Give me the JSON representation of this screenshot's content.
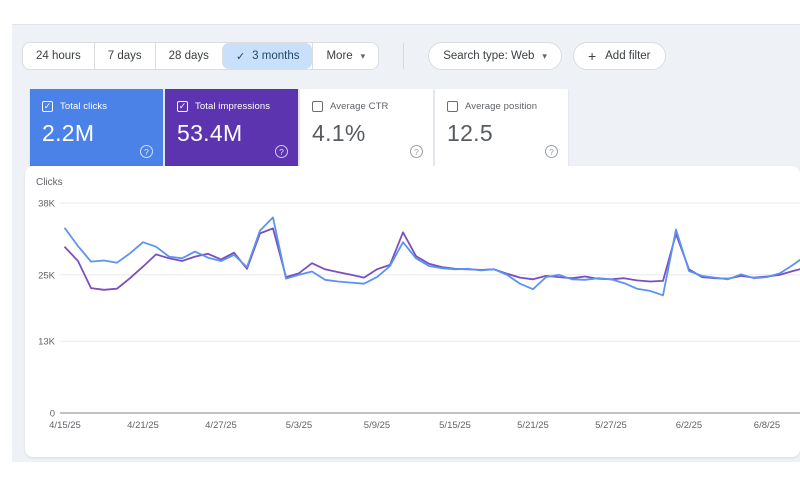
{
  "page": {
    "background": "#ffffff",
    "panel_background": "#eef1f5"
  },
  "toolbar": {
    "selected_chip_bg": "#c9e0fa",
    "date_ranges": [
      {
        "label": "24 hours",
        "selected": false
      },
      {
        "label": "7 days",
        "selected": false
      },
      {
        "label": "28 days",
        "selected": false
      },
      {
        "label": "3 months",
        "selected": true,
        "check_icon": "✓"
      },
      {
        "label": "More",
        "selected": false,
        "has_caret": true
      }
    ],
    "caret_icon": "▾",
    "search_type_label": "Search type: Web",
    "add_filter_plus": "+",
    "add_filter_label": "Add filter"
  },
  "metrics": [
    {
      "label": "Total clicks",
      "value": "2.2M",
      "checked": true,
      "bg": "#4a82e8",
      "text_color": "#ffffff",
      "help_icon": "?"
    },
    {
      "label": "Total impressions",
      "value": "53.4M",
      "checked": true,
      "bg": "#5c34b0",
      "text_color": "#ffffff",
      "help_icon": "?"
    },
    {
      "label": "Average CTR",
      "value": "4.1%",
      "checked": false,
      "bg": "#ffffff",
      "text_color": "#585c60",
      "help_icon": "?"
    },
    {
      "label": "Average position",
      "value": "12.5",
      "checked": false,
      "bg": "#ffffff",
      "text_color": "#585c60",
      "help_icon": "?"
    }
  ],
  "chart_data": {
    "type": "line",
    "ylabel": "Clicks",
    "grid": true,
    "legend": "none",
    "ylim": [
      0,
      39500
    ],
    "y_ticks": [
      {
        "label": "38K",
        "value": 38000
      },
      {
        "label": "25K",
        "value": 25000
      },
      {
        "label": "13K",
        "value": 13000
      },
      {
        "label": "0",
        "value": 0
      }
    ],
    "x_tick_labels": [
      "4/15/25",
      "4/21/25",
      "4/27/25",
      "5/3/25",
      "5/9/25",
      "5/15/25",
      "5/21/25",
      "5/27/25",
      "6/2/25",
      "6/8/25"
    ],
    "x_tick_indices": [
      0,
      6,
      12,
      18,
      24,
      30,
      36,
      42,
      48,
      54
    ],
    "dates": [
      "4/15/25",
      "4/16/25",
      "4/17/25",
      "4/18/25",
      "4/19/25",
      "4/20/25",
      "4/21/25",
      "4/22/25",
      "4/23/25",
      "4/24/25",
      "4/25/25",
      "4/26/25",
      "4/27/25",
      "4/28/25",
      "4/29/25",
      "4/30/25",
      "5/1/25",
      "5/2/25",
      "5/3/25",
      "5/4/25",
      "5/5/25",
      "5/6/25",
      "5/7/25",
      "5/8/25",
      "5/9/25",
      "5/10/25",
      "5/11/25",
      "5/12/25",
      "5/13/25",
      "5/14/25",
      "5/15/25",
      "5/16/25",
      "5/17/25",
      "5/18/25",
      "5/19/25",
      "5/20/25",
      "5/21/25",
      "5/22/25",
      "5/23/25",
      "5/24/25",
      "5/25/25",
      "5/26/25",
      "5/27/25",
      "5/28/25",
      "5/29/25",
      "5/30/25",
      "5/31/25",
      "6/1/25",
      "6/2/25",
      "6/3/25",
      "6/4/25",
      "6/5/25",
      "6/6/25",
      "6/7/25",
      "6/8/25",
      "6/9/25",
      "6/10/25",
      "6/11/25"
    ],
    "note": "Impressions line is drawn against a secondary axis not visible in the crop; values below are as plotted on the visible Clicks axis.",
    "series": [
      {
        "name": "Total impressions",
        "color": "#7a4fc0",
        "values": [
          30000,
          27500,
          22600,
          22300,
          22500,
          24400,
          26500,
          28700,
          28000,
          27500,
          28300,
          28800,
          27800,
          29000,
          26100,
          32500,
          33400,
          24600,
          25300,
          27100,
          26000,
          25500,
          25000,
          24500,
          26000,
          26800,
          32700,
          28400,
          27000,
          26400,
          26100,
          26000,
          25900,
          26000,
          25200,
          24500,
          24200,
          24800,
          24600,
          24400,
          24700,
          24300,
          24200,
          24400,
          24000,
          23800,
          23900,
          32400,
          26000,
          24600,
          24400,
          24300,
          24800,
          24500,
          24700,
          25000,
          25700,
          26300
        ]
      },
      {
        "name": "Total clicks",
        "color": "#5b93f2",
        "values": [
          33400,
          30200,
          27400,
          27600,
          27200,
          28900,
          30900,
          30100,
          28300,
          28000,
          29200,
          28100,
          27500,
          28600,
          26400,
          33000,
          35400,
          24300,
          25000,
          25600,
          24100,
          23800,
          23600,
          23400,
          24600,
          26600,
          30900,
          28000,
          26600,
          26200,
          26000,
          26100,
          25800,
          26000,
          25000,
          23400,
          22400,
          24600,
          25000,
          24200,
          24100,
          24400,
          24200,
          23500,
          22500,
          22100,
          21300,
          33200,
          25700,
          24800,
          24500,
          24200,
          25100,
          24400,
          24600,
          25300,
          26800,
          28500
        ]
      }
    ]
  }
}
